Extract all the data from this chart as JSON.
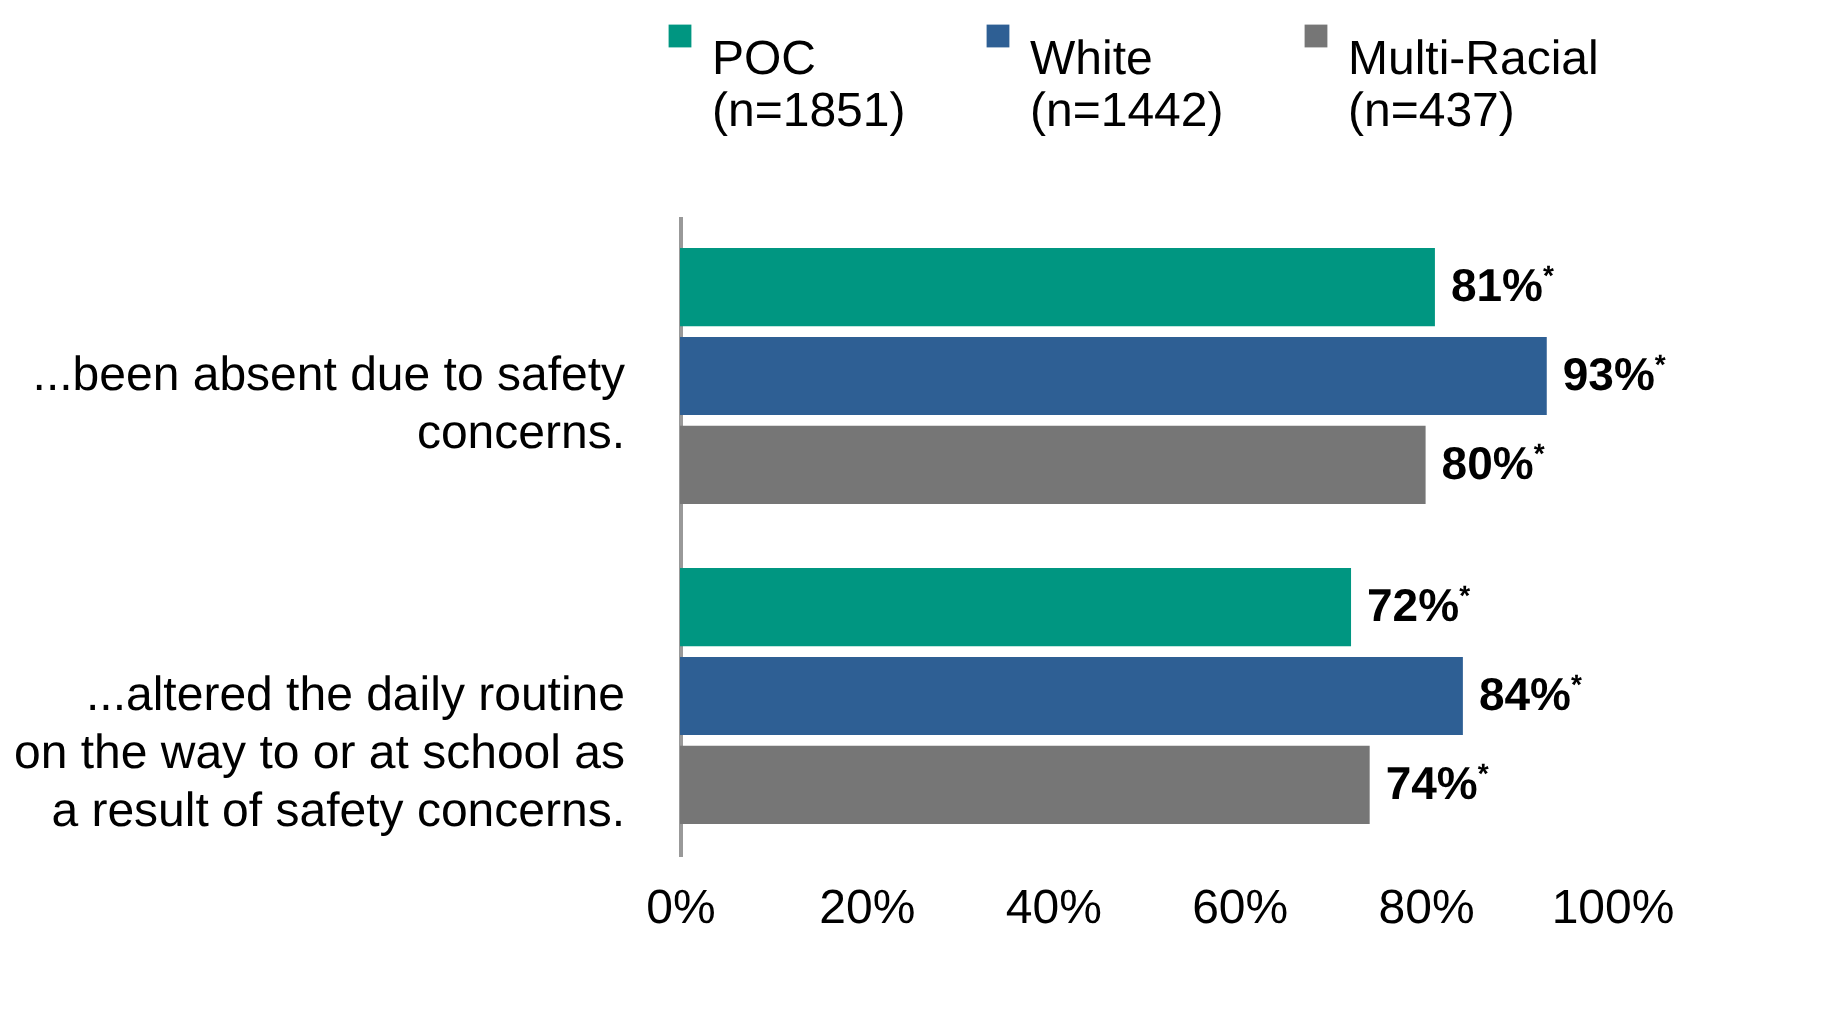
{
  "chart_data": {
    "type": "bar",
    "orientation": "horizontal",
    "legend": "top",
    "categories": [
      "...been absent due to safety concerns.",
      "...altered the daily routine on the way to or at school as a result of safety concerns."
    ],
    "xlim": [
      0,
      100
    ],
    "xticks": [
      {
        "value": 0,
        "label": "0%"
      },
      {
        "value": 20,
        "label": "20%"
      },
      {
        "value": 40,
        "label": "40%"
      },
      {
        "value": 60,
        "label": "60%"
      },
      {
        "value": 80,
        "label": "80%"
      },
      {
        "value": 100,
        "label": "100%"
      }
    ],
    "series": [
      {
        "name": "POC\n(n=1851)",
        "color": "#009681",
        "values": [
          81,
          72
        ],
        "value_labels": [
          "81%$^{*}$",
          "72%$^{*}$"
        ]
      },
      {
        "name": "White\n(n=1442)",
        "color": "#2e5f94",
        "values": [
          93,
          84
        ],
        "value_labels": [
          "93%$^{*}$",
          "84%$^{*}$"
        ]
      },
      {
        "name": "Multi-Racial\n(n=437)",
        "color": "#767676",
        "values": [
          80,
          74
        ],
        "value_labels": [
          "80%$^{*}$",
          "74%$^{*}$"
        ]
      }
    ]
  }
}
